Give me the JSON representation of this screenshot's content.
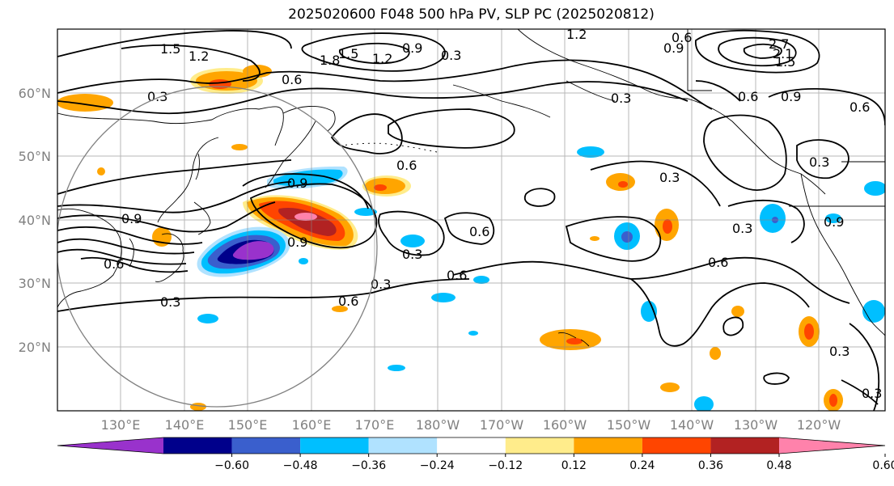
{
  "title": "2025020600 F048 500 hPa PV, SLP PC (2025020812)",
  "lat_labels": [
    "60°N",
    "50°N",
    "40°N",
    "30°N",
    "20°N"
  ],
  "lon_labels": [
    "130°E",
    "140°E",
    "150°E",
    "160°E",
    "170°E",
    "180°W",
    "170°W",
    "160°W",
    "150°W",
    "140°W",
    "130°W",
    "120°W"
  ],
  "colorbar": {
    "colors": [
      "#9932CC",
      "#00008B",
      "#3A5FCD",
      "#00BFFF",
      "#B0E2FF",
      "#FFFFFF",
      "#FFEC8B",
      "#FFA500",
      "#FF4500",
      "#B22222",
      "#FF82AB"
    ],
    "tick_labels": [
      "−0.60",
      "−0.48",
      "−0.36",
      "−0.24",
      "−0.12",
      "0.12",
      "0.24",
      "0.36",
      "0.48",
      "0.60"
    ]
  },
  "contour_labels": [
    "1.5",
    "1.2",
    "1.8",
    "1.5",
    "1.2",
    "0.9",
    "0.3",
    "1.2",
    "0.6",
    "0.9",
    "2.7",
    "2.1",
    "1.5",
    "0.6",
    "0.3",
    "0.6",
    "0.9",
    "0.6",
    "0.3",
    "0.3",
    "0.9",
    "0.6",
    "0.9",
    "0.3",
    "0.6",
    "0.3",
    "0.6",
    "0.9",
    "0.6",
    "0.3",
    "0.9",
    "0.6",
    "0.3",
    "0.6",
    "0.3",
    "0.3",
    "0.3"
  ]
}
